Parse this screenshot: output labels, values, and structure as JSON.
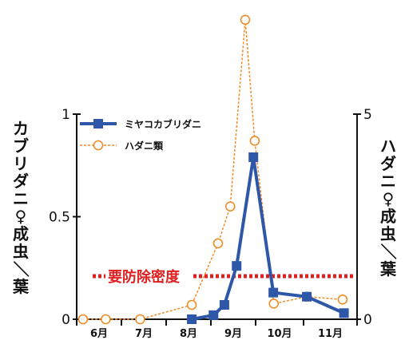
{
  "chart_data": {
    "type": "line",
    "x_tick_labels": [
      "6月",
      "7月",
      "8月",
      "9月",
      "10月",
      "11月"
    ],
    "left_axis": {
      "label": "カブリダニ♀成虫／葉",
      "range": [
        0,
        1
      ],
      "tick_labels": [
        "0",
        "0.5",
        "1"
      ],
      "ticks": [
        0,
        0.5,
        1
      ]
    },
    "right_axis": {
      "label": "ハダニ♀成虫／葉",
      "range": [
        0,
        5
      ],
      "tick_labels": [
        "0",
        "5"
      ],
      "ticks": [
        0,
        5
      ]
    },
    "series": [
      {
        "name": "ミヤコカブリダニ",
        "axis": "left",
        "style": "solid-square",
        "color": "#2e57a8",
        "points": [
          {
            "x": 2.4,
            "y": 0.0
          },
          {
            "x": 2.88,
            "y": 0.02
          },
          {
            "x": 3.12,
            "y": 0.07
          },
          {
            "x": 3.39,
            "y": 0.26
          },
          {
            "x": 3.76,
            "y": 0.79
          },
          {
            "x": 4.2,
            "y": 0.13
          },
          {
            "x": 4.94,
            "y": 0.11
          },
          {
            "x": 5.76,
            "y": 0.03
          }
        ]
      },
      {
        "name": "ハダニ類",
        "axis": "right",
        "style": "dotted-open-circle",
        "color": "#f08c28",
        "points": [
          {
            "x": 0.0,
            "y": 0.0
          },
          {
            "x": 0.5,
            "y": 0.0
          },
          {
            "x": 1.26,
            "y": 0.0
          },
          {
            "x": 2.4,
            "y": 0.35
          },
          {
            "x": 2.98,
            "y": 1.85
          },
          {
            "x": 3.25,
            "y": 2.75
          },
          {
            "x": 3.58,
            "y": 7.3
          },
          {
            "x": 3.79,
            "y": 4.35
          },
          {
            "x": 4.21,
            "y": 0.38
          },
          {
            "x": 4.94,
            "y": 0.55
          },
          {
            "x": 5.73,
            "y": 0.48
          }
        ]
      }
    ],
    "threshold": {
      "label": "要防除密度",
      "axis": "left",
      "value": 0.21,
      "color": "#e02020"
    },
    "legend_position": "top-left",
    "grid": false
  }
}
